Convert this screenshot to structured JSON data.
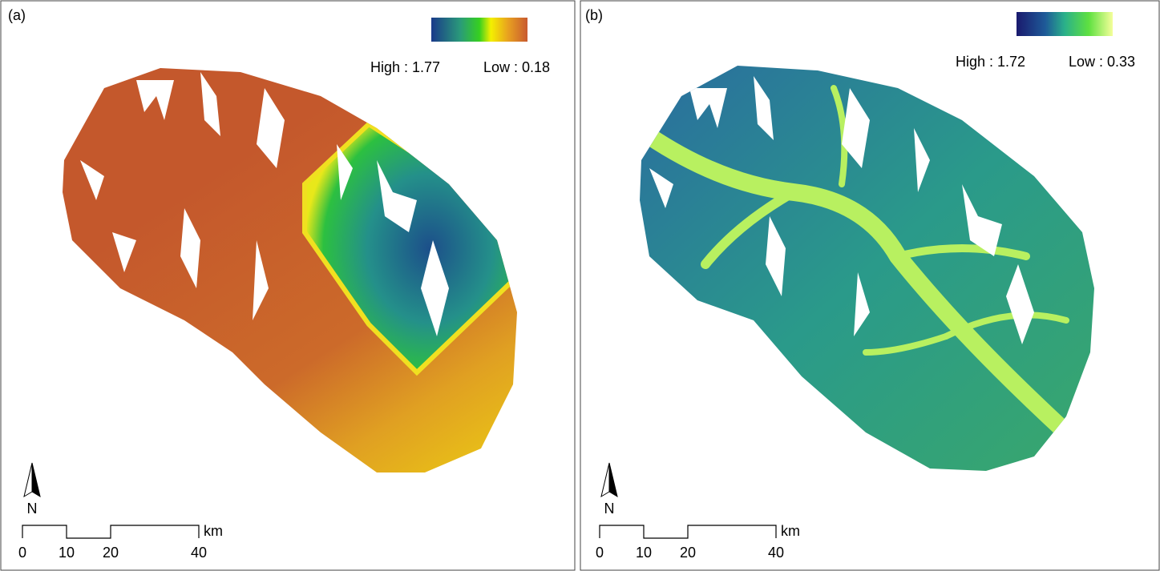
{
  "panels": [
    {
      "label": "(a)",
      "legend": {
        "high": "High : 1.77",
        "low": "Low : 0.18"
      },
      "north": "N",
      "scale": {
        "ticks": [
          "0",
          "10",
          "20",
          "40"
        ],
        "unit": "km"
      }
    },
    {
      "label": "(b)",
      "legend": {
        "high": "High : 1.72",
        "low": "Low : 0.33"
      },
      "north": "N",
      "scale": {
        "ticks": [
          "0",
          "10",
          "20",
          "40"
        ],
        "unit": "km"
      }
    }
  ]
}
